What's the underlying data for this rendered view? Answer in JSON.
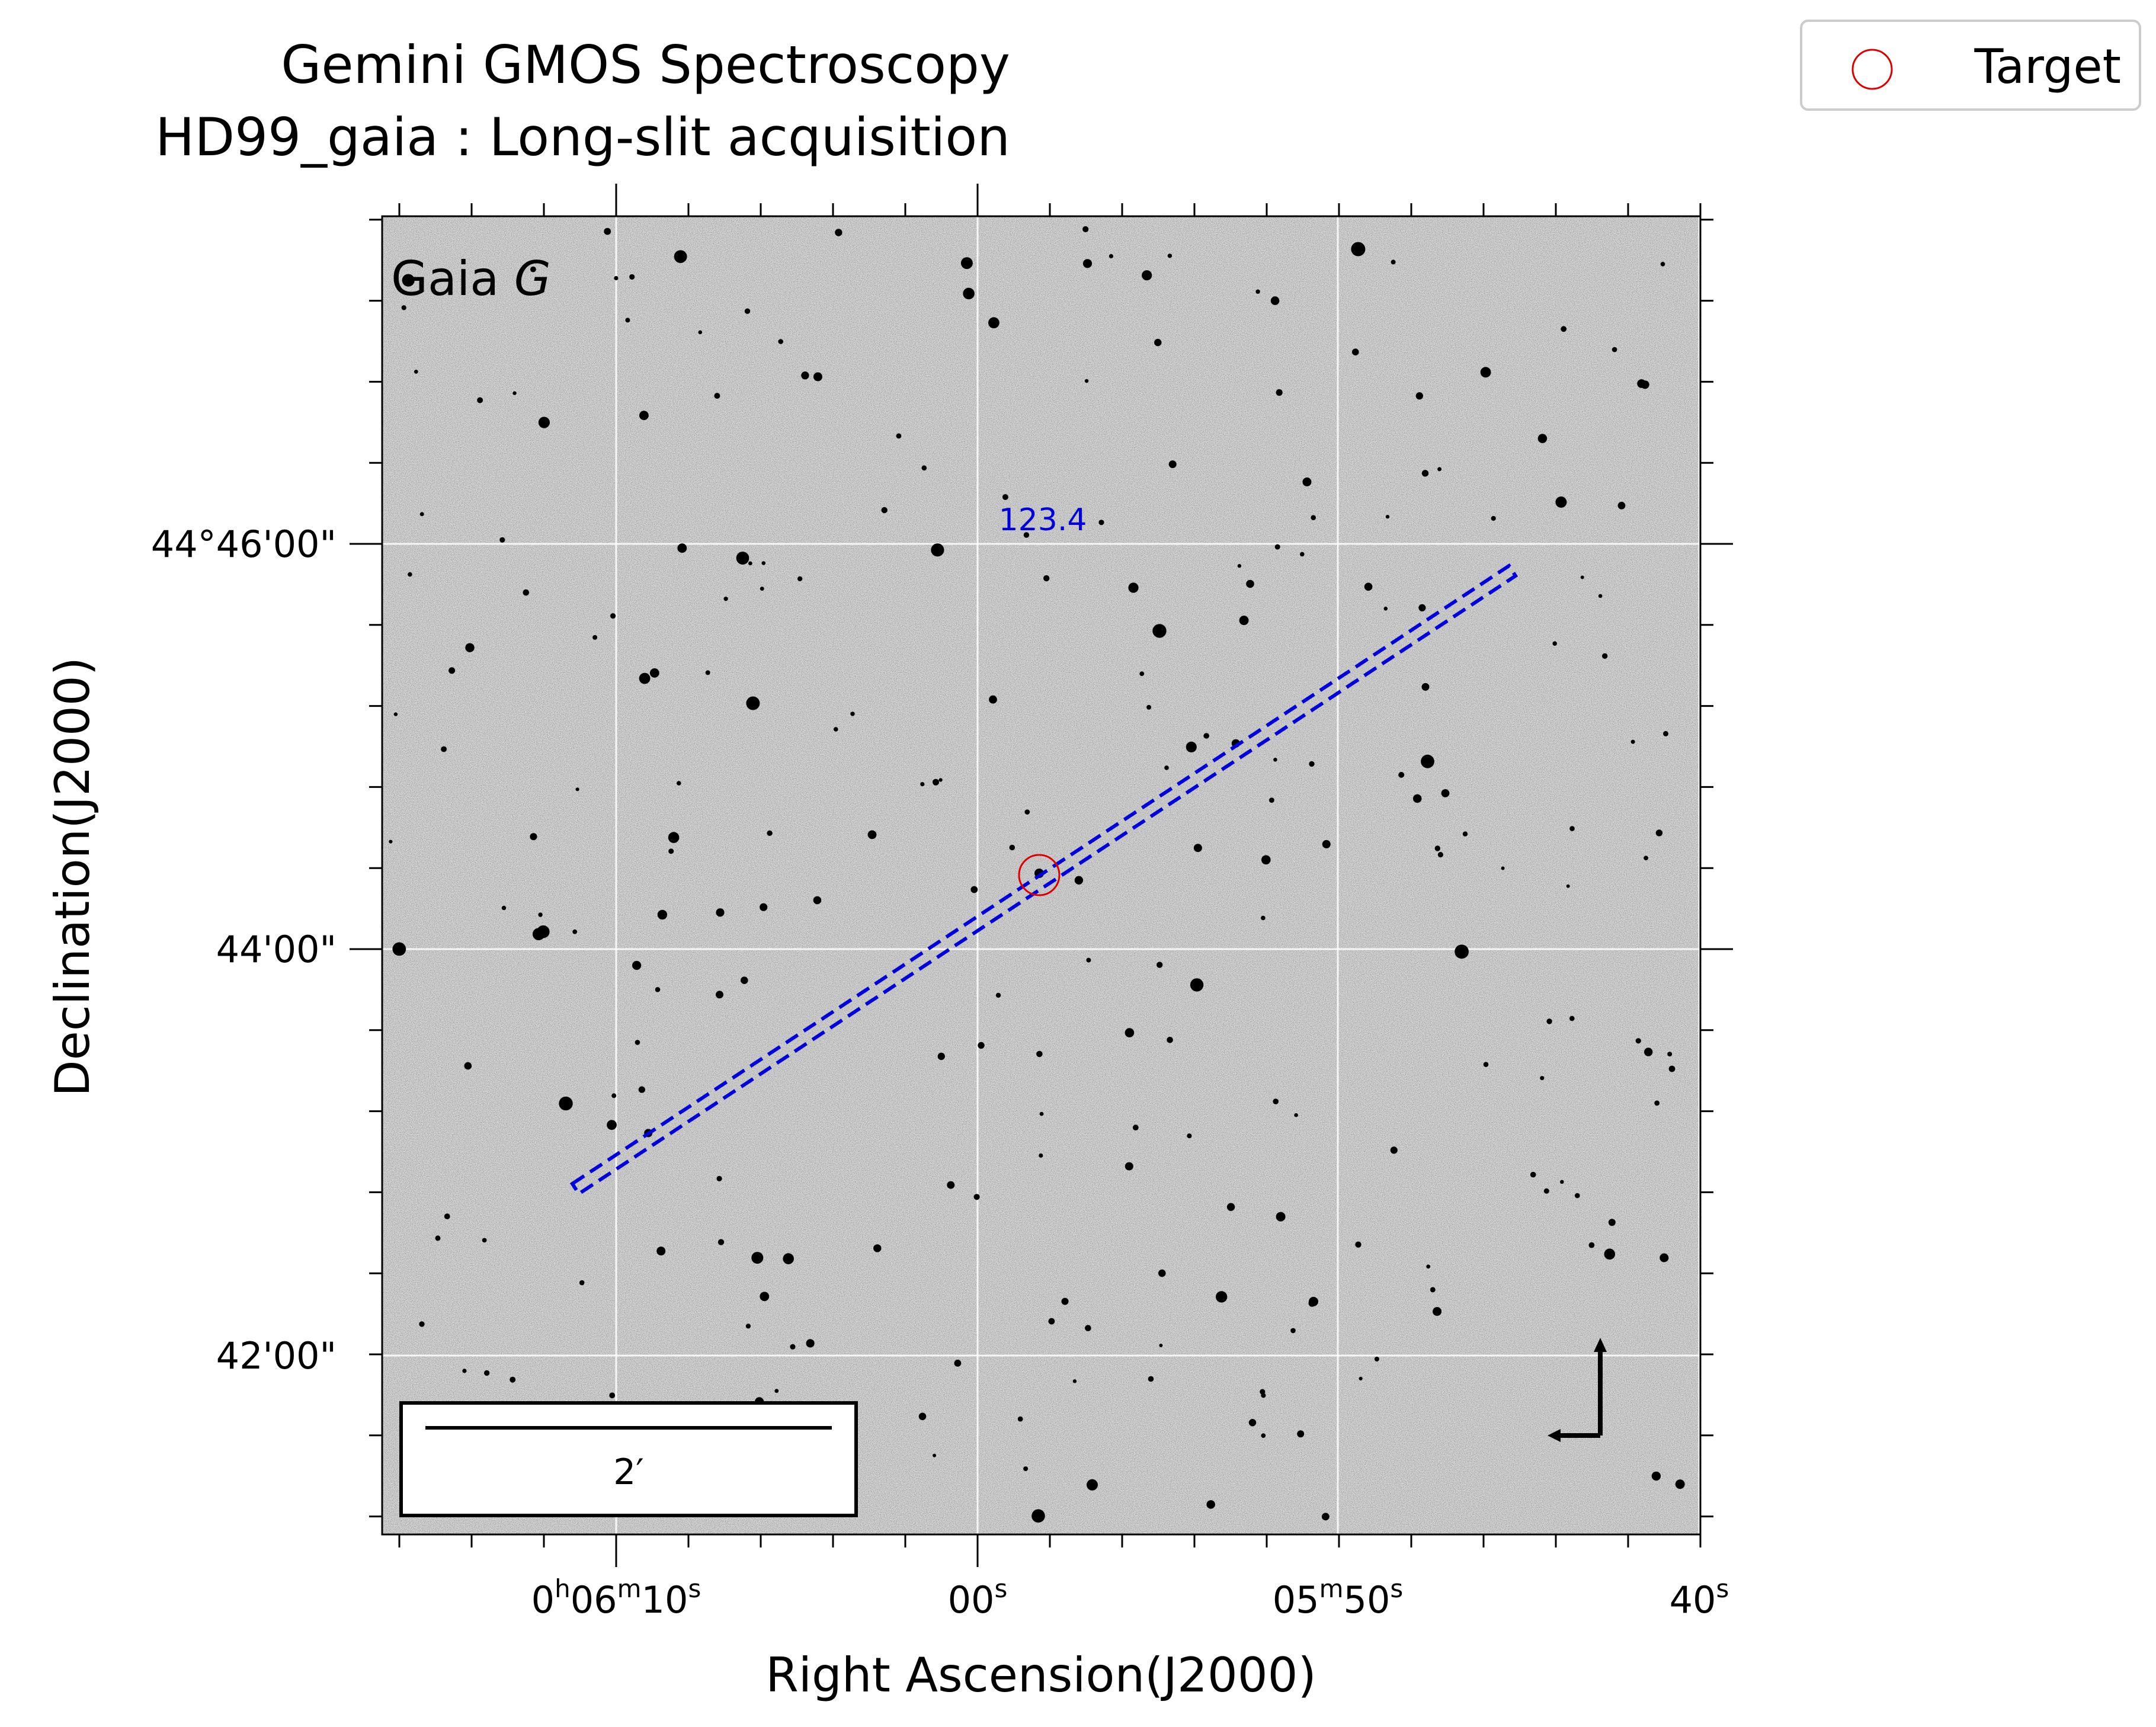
{
  "title": {
    "line1": "Gemini GMOS Spectroscopy",
    "line2": "HD99_gaia : Long-slit acquisition"
  },
  "legend": {
    "label": "Target",
    "marker_color": "#dd0000",
    "placement": "top-right"
  },
  "image": {
    "band_label_prefix": "Gaia ",
    "band_label_italic": "G",
    "background_color": "#dcdcdc",
    "grid_color": "#ffffff"
  },
  "axes": {
    "xlabel": "Right Ascension(J2000)",
    "ylabel": "Declination(J2000)",
    "ra_ticks": [
      {
        "value": "0h06m10s",
        "parts": [
          {
            "t": "0"
          },
          {
            "t": "h",
            "sup": true
          },
          {
            "t": "06"
          },
          {
            "t": "m",
            "sup": true
          },
          {
            "t": "10"
          },
          {
            "t": "s",
            "sup": true
          }
        ]
      },
      {
        "value": "00s",
        "parts": [
          {
            "t": "00"
          },
          {
            "t": "s",
            "sup": true
          }
        ]
      },
      {
        "value": "05m50s",
        "parts": [
          {
            "t": "05"
          },
          {
            "t": "m",
            "sup": true
          },
          {
            "t": "50"
          },
          {
            "t": "s",
            "sup": true
          }
        ]
      },
      {
        "value": "40s",
        "parts": [
          {
            "t": "40"
          },
          {
            "t": "s",
            "sup": true
          }
        ]
      }
    ],
    "dec_ticks": [
      {
        "label": "44°46'00\""
      },
      {
        "label": "44'00\""
      },
      {
        "label": "42'00\""
      }
    ]
  },
  "slit": {
    "position_angle_label": "123.4",
    "color": "#0000dd"
  },
  "scale_bar": {
    "label": "2′"
  },
  "compass": {
    "color": "#000000"
  }
}
